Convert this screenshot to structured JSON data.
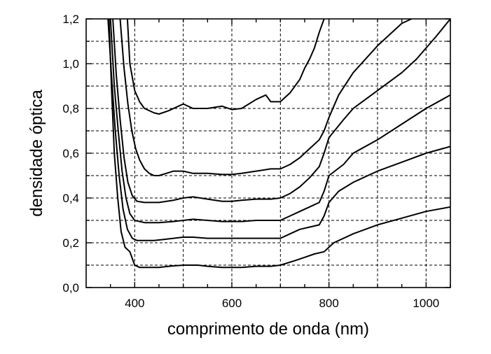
{
  "chart_data": {
    "type": "line",
    "title": "",
    "xlabel": "comprimento de onda (nm)",
    "ylabel": "densidade óptica",
    "xlim": [
      300,
      1050
    ],
    "ylim": [
      0.0,
      1.2
    ],
    "x_ticks": [
      400,
      600,
      800,
      1000
    ],
    "x_tick_labels": [
      "400",
      "600",
      "800",
      "1000"
    ],
    "y_ticks": [
      0.0,
      0.2,
      0.4,
      0.6,
      0.8,
      1.0,
      1.2
    ],
    "y_tick_labels": [
      "0,0",
      "0,2",
      "0,4",
      "0,6",
      "0,8",
      "1,0",
      "1,2"
    ],
    "grid": true,
    "legend": "none",
    "series": [
      {
        "x": [
          347,
          352,
          358,
          365,
          372,
          380,
          390,
          400,
          410,
          430,
          450,
          470,
          500,
          530,
          550,
          580,
          600,
          620,
          650,
          680,
          700,
          730,
          750,
          770,
          790,
          810,
          850,
          900,
          950,
          1000,
          1050
        ],
        "y": [
          1.2,
          0.9,
          0.6,
          0.4,
          0.25,
          0.18,
          0.16,
          0.1,
          0.09,
          0.09,
          0.09,
          0.095,
          0.1,
          0.1,
          0.095,
          0.09,
          0.09,
          0.09,
          0.095,
          0.095,
          0.1,
          0.12,
          0.135,
          0.15,
          0.16,
          0.2,
          0.24,
          0.28,
          0.31,
          0.34,
          0.36
        ]
      },
      {
        "x": [
          345,
          352,
          360,
          368,
          376,
          385,
          395,
          405,
          420,
          440,
          460,
          480,
          500,
          520,
          550,
          580,
          600,
          620,
          650,
          680,
          700,
          720,
          740,
          760,
          780,
          790,
          800,
          820,
          850,
          900,
          950,
          1000,
          1050
        ],
        "y": [
          1.2,
          0.95,
          0.7,
          0.5,
          0.35,
          0.26,
          0.22,
          0.21,
          0.21,
          0.21,
          0.215,
          0.22,
          0.225,
          0.225,
          0.22,
          0.22,
          0.22,
          0.22,
          0.22,
          0.22,
          0.22,
          0.24,
          0.26,
          0.27,
          0.28,
          0.32,
          0.38,
          0.43,
          0.47,
          0.52,
          0.56,
          0.6,
          0.63
        ]
      },
      {
        "x": [
          350,
          358,
          366,
          374,
          382,
          390,
          400,
          420,
          450,
          480,
          500,
          520,
          550,
          580,
          600,
          620,
          650,
          680,
          700,
          720,
          740,
          760,
          780,
          790,
          800,
          830,
          850,
          900,
          950,
          1000,
          1050
        ],
        "y": [
          1.2,
          0.9,
          0.7,
          0.52,
          0.4,
          0.33,
          0.3,
          0.29,
          0.29,
          0.295,
          0.3,
          0.305,
          0.3,
          0.295,
          0.295,
          0.295,
          0.3,
          0.3,
          0.3,
          0.32,
          0.34,
          0.36,
          0.38,
          0.43,
          0.5,
          0.55,
          0.6,
          0.66,
          0.73,
          0.8,
          0.86
        ]
      },
      {
        "x": [
          355,
          362,
          370,
          378,
          386,
          395,
          405,
          420,
          450,
          480,
          500,
          520,
          550,
          580,
          600,
          620,
          650,
          680,
          700,
          720,
          740,
          760,
          780,
          790,
          800,
          830,
          850,
          900,
          950,
          980,
          1000,
          1020,
          1050
        ],
        "y": [
          1.2,
          0.95,
          0.75,
          0.58,
          0.47,
          0.41,
          0.385,
          0.38,
          0.38,
          0.39,
          0.4,
          0.405,
          0.395,
          0.385,
          0.385,
          0.39,
          0.395,
          0.395,
          0.4,
          0.42,
          0.45,
          0.49,
          0.54,
          0.6,
          0.67,
          0.75,
          0.8,
          0.88,
          0.96,
          1.02,
          1.07,
          1.12,
          1.2
        ]
      },
      {
        "x": [
          370,
          378,
          386,
          394,
          402,
          410,
          420,
          430,
          440,
          450,
          465,
          480,
          500,
          520,
          550,
          580,
          600,
          620,
          650,
          680,
          700,
          720,
          740,
          760,
          780,
          790,
          800,
          820,
          850,
          900,
          950,
          970
        ],
        "y": [
          1.2,
          0.98,
          0.82,
          0.7,
          0.62,
          0.57,
          0.53,
          0.51,
          0.5,
          0.5,
          0.51,
          0.52,
          0.52,
          0.51,
          0.51,
          0.505,
          0.505,
          0.51,
          0.52,
          0.53,
          0.53,
          0.55,
          0.58,
          0.62,
          0.66,
          0.7,
          0.76,
          0.86,
          0.96,
          1.08,
          1.18,
          1.2
        ]
      },
      {
        "x": [
          385,
          390,
          400,
          410,
          420,
          440,
          450,
          470,
          500,
          520,
          550,
          580,
          600,
          620,
          650,
          670,
          680,
          700,
          720,
          740,
          750,
          760,
          770,
          780,
          790
        ],
        "y": [
          1.2,
          1.0,
          0.88,
          0.83,
          0.8,
          0.78,
          0.775,
          0.79,
          0.82,
          0.8,
          0.8,
          0.81,
          0.795,
          0.8,
          0.84,
          0.86,
          0.83,
          0.83,
          0.87,
          0.93,
          0.98,
          1.02,
          1.07,
          1.14,
          1.2
        ]
      }
    ]
  }
}
